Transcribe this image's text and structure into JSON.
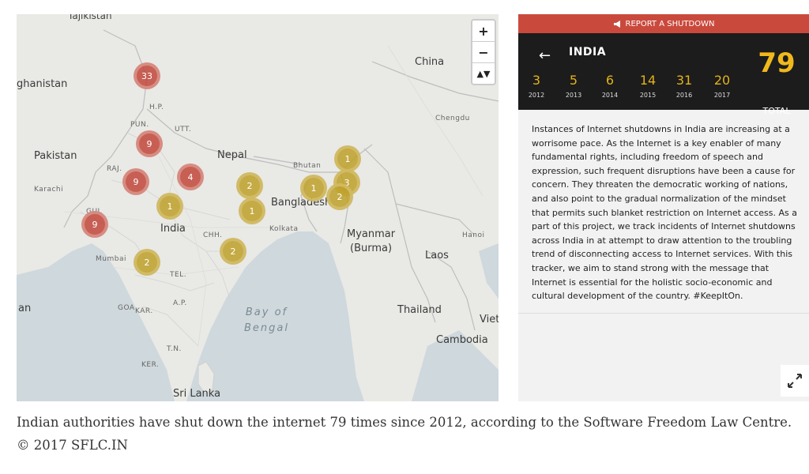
{
  "map": {
    "zoom_in": "+",
    "zoom_out": "−",
    "reset_north": "▲▼",
    "labels": [
      {
        "text": "Tajikistan",
        "size": "md"
      },
      {
        "text": "ghanistan",
        "size": "lg"
      },
      {
        "text": "China",
        "size": "lg"
      },
      {
        "text": "Chengdu",
        "size": "sm"
      },
      {
        "text": "Pakistan",
        "size": "lg"
      },
      {
        "text": "Nepal",
        "size": "lg"
      },
      {
        "text": "Bhutan",
        "size": "sm"
      },
      {
        "text": "Karachi",
        "size": "sm"
      },
      {
        "text": "Bangladesh",
        "size": "lg"
      },
      {
        "text": "India",
        "size": "lg"
      },
      {
        "text": "Kolkata",
        "size": "sm"
      },
      {
        "text": "Myanmar",
        "size": "lg"
      },
      {
        "text": "(Burma)",
        "size": "lg"
      },
      {
        "text": "Hanoi",
        "size": "sm"
      },
      {
        "text": "Laos",
        "size": "lg"
      },
      {
        "text": "Mumbai",
        "size": "sm"
      },
      {
        "text": "Thailand",
        "size": "lg"
      },
      {
        "text": "Viet",
        "size": "lg"
      },
      {
        "text": "Cambodia",
        "size": "lg"
      },
      {
        "text": "Sri Lanka",
        "size": "lg"
      },
      {
        "text": "an",
        "size": "lg"
      },
      {
        "text": "H.P.",
        "size": "sm"
      },
      {
        "text": "PUN.",
        "size": "sm"
      },
      {
        "text": "UTT.",
        "size": "sm"
      },
      {
        "text": "RAJ.",
        "size": "sm"
      },
      {
        "text": "GUJ.",
        "size": "sm"
      },
      {
        "text": "CHH.",
        "size": "sm"
      },
      {
        "text": "TEL.",
        "size": "sm"
      },
      {
        "text": "A.P.",
        "size": "sm"
      },
      {
        "text": "GOA",
        "size": "sm"
      },
      {
        "text": "KAR.",
        "size": "sm"
      },
      {
        "text": "T.N.",
        "size": "sm"
      },
      {
        "text": "KER.",
        "size": "sm"
      }
    ],
    "sea_label": "Bay of\nBengal",
    "markers": [
      {
        "count": "33",
        "color": "#c14639"
      },
      {
        "count": "9",
        "color": "#c14639"
      },
      {
        "count": "9",
        "color": "#c14639"
      },
      {
        "count": "4",
        "color": "#c14639"
      },
      {
        "count": "9",
        "color": "#c14639"
      },
      {
        "count": "1",
        "color": "#bea028"
      },
      {
        "count": "2",
        "color": "#bea028"
      },
      {
        "count": "1",
        "color": "#bea028"
      },
      {
        "count": "2",
        "color": "#bea028"
      },
      {
        "count": "2",
        "color": "#bea028"
      },
      {
        "count": "1",
        "color": "#bea028"
      },
      {
        "count": "1",
        "color": "#bea028"
      },
      {
        "count": "3",
        "color": "#bea028"
      },
      {
        "count": "2",
        "color": "#bea028"
      }
    ]
  },
  "panel": {
    "report_button": "REPORT A SHUTDOWN",
    "back_icon": "left-arrow",
    "country": "INDIA",
    "years": [
      {
        "count": "3",
        "year": "2012"
      },
      {
        "count": "5",
        "year": "2013"
      },
      {
        "count": "6",
        "year": "2014"
      },
      {
        "count": "14",
        "year": "2015"
      },
      {
        "count": "31",
        "year": "2016"
      },
      {
        "count": "20",
        "year": "2017"
      }
    ],
    "total": "79",
    "total_label": "TOTAL",
    "description": "Instances of Internet shutdowns in India are increasing at a worrisome pace. As the Internet is a key enabler of many fundamental rights, including freedom of speech and expression, such frequent disruptions have been a cause for concern. They threaten the democratic working of nations, and also point to the gradual normalization of the mindset that permits such blanket restriction on Internet access. As a part of this project, we track incidents of Internet shutdowns across India in at attempt to draw attention to the troubling trend of disconnecting access to Internet services. With this tracker, we aim to stand strong with the message that Internet is essential for the holistic socio-economic and cultural development of the country. #KeepItOn."
  },
  "caption": "Indian authorities have shut down the internet 79 times since 2012, according to the Software Freedom Law Centre.  © 2017 SFLC.IN",
  "colors": {
    "report_bar": "#c94a3d",
    "stats_bg": "#1c1c1c",
    "accent_yellow": "#e3b318",
    "water": "#cfd8dc",
    "land": "#e9e9e6"
  }
}
